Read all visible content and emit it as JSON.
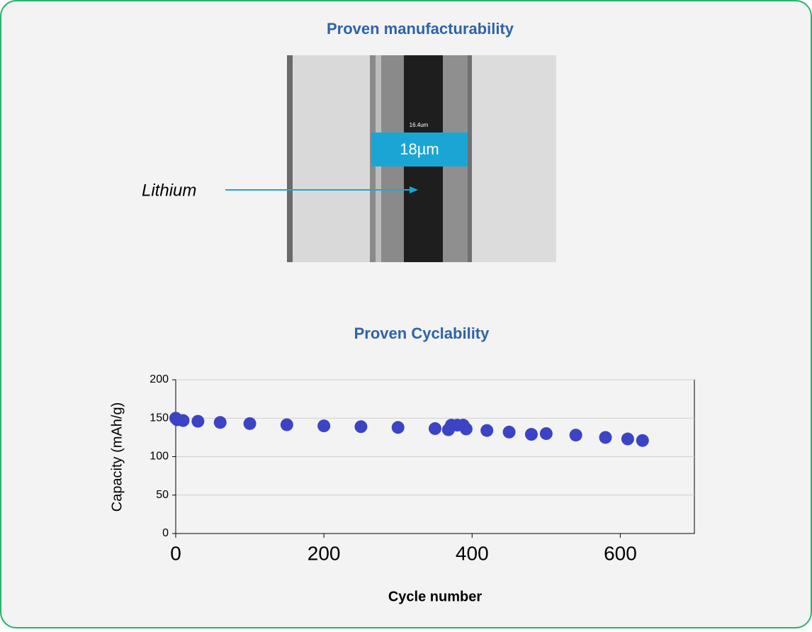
{
  "heading": "Proven manufacturability",
  "micrograph": {
    "scale_bar_small": "16.4um",
    "scale_bar": "18µm",
    "annotation": "Lithium"
  },
  "chart_data": {
    "type": "scatter",
    "title": "Proven Cyclability",
    "x_label": "Cycle number",
    "y_label": "Capacity (mAh/g)",
    "xlim": [
      0,
      700
    ],
    "ylim": [
      0,
      200
    ],
    "xticks": [
      0,
      200,
      400,
      600
    ],
    "yticks": [
      0,
      50,
      100,
      150,
      200
    ],
    "grid": true,
    "series": [
      {
        "color": "#3b44c4",
        "x": [
          0,
          2,
          10,
          30,
          60,
          100,
          150,
          200,
          250,
          300,
          350,
          368,
          372,
          380,
          388,
          392,
          420,
          450,
          480,
          500,
          540,
          580,
          610,
          630
        ],
        "values": [
          150,
          148,
          147,
          146,
          144.5,
          143,
          141.5,
          140,
          139,
          138,
          136.5,
          135,
          141,
          141,
          141,
          136,
          134,
          132,
          129,
          130,
          128,
          125,
          123,
          121
        ]
      }
    ]
  }
}
